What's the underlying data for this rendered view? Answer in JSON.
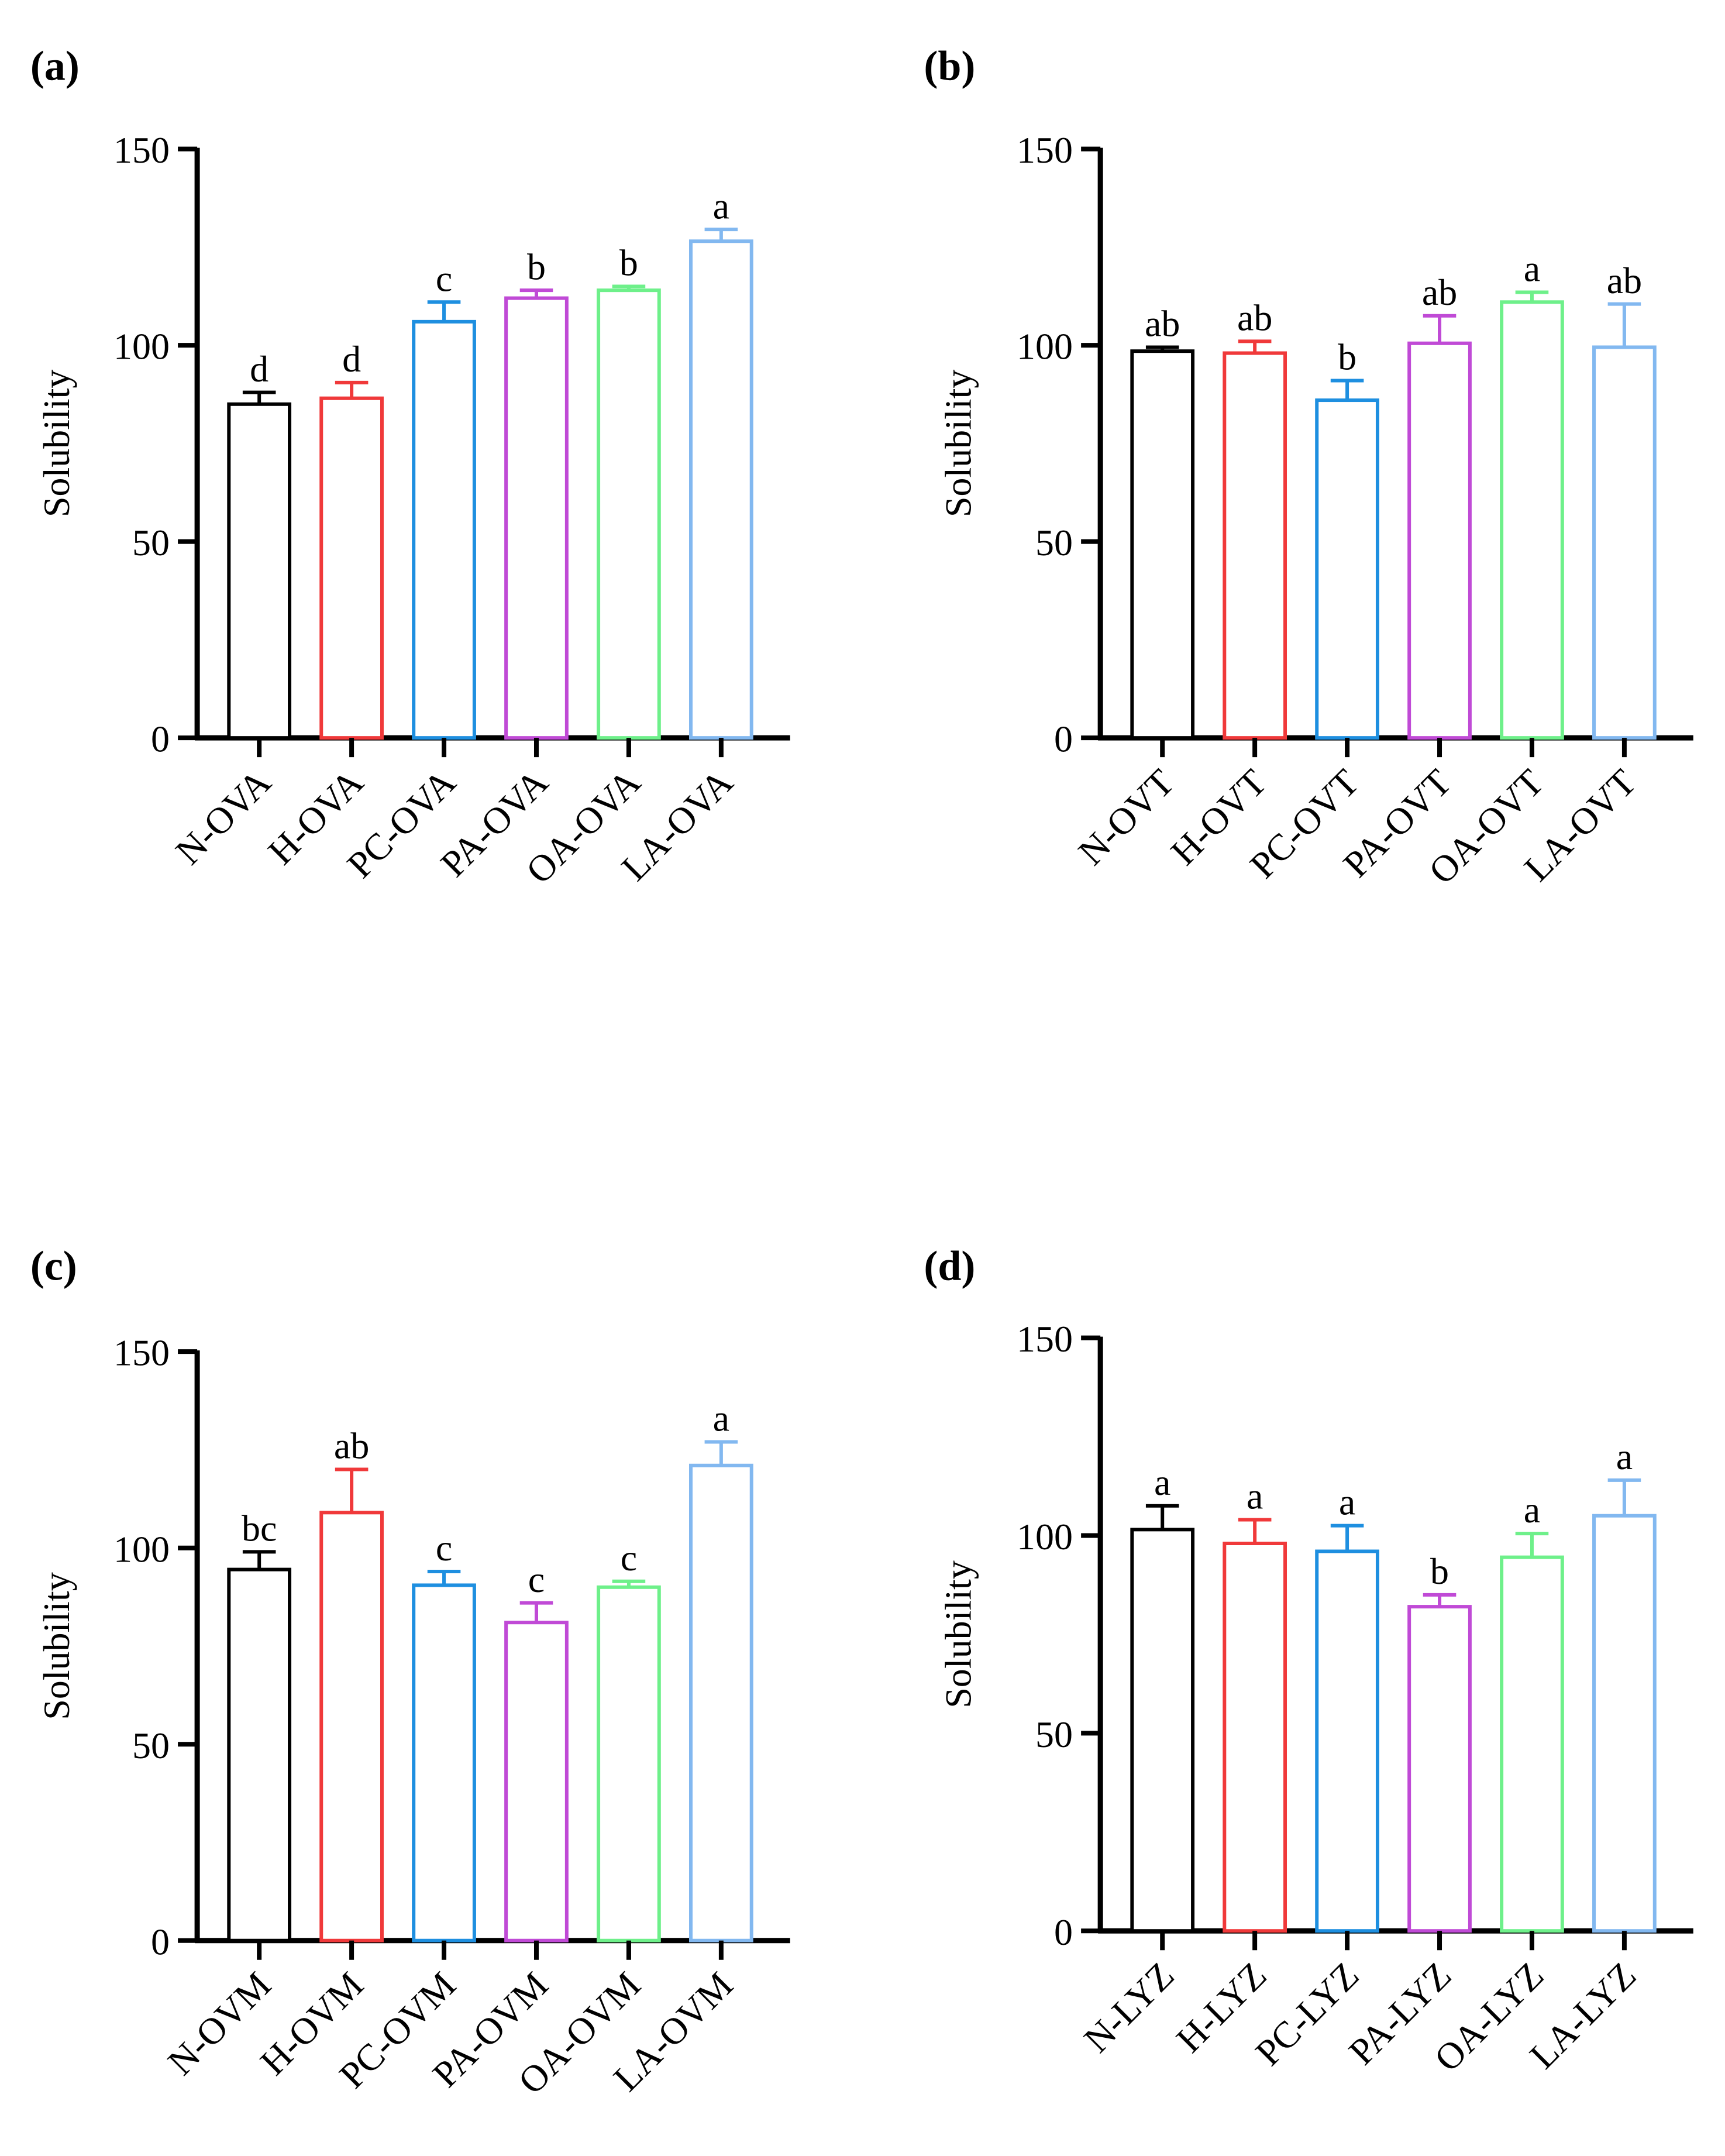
{
  "chart_data": [
    {
      "type": "bar",
      "panel_label": "(a)",
      "ylabel": "Solubility",
      "xlabel": "",
      "ylim": [
        0,
        150
      ],
      "yticks": [
        "0",
        "50",
        "100",
        "150"
      ],
      "categories": [
        "N-OVA",
        "H-OVA",
        "PC-OVA",
        "PA-OVA",
        "OA-OVA",
        "LA-OVA"
      ],
      "values": [
        85,
        86.5,
        106,
        112,
        114,
        126.5
      ],
      "errors": [
        3,
        4,
        5,
        2,
        1,
        3
      ],
      "significance": [
        "d",
        "d",
        "c",
        "b",
        "b",
        "a"
      ],
      "colors": [
        "#000000",
        "#f0393a",
        "#1e8fe0",
        "#c04ad6",
        "#6ef08a",
        "#82b8f0"
      ]
    },
    {
      "type": "bar",
      "panel_label": "(b)",
      "ylabel": "Solubility",
      "xlabel": "",
      "ylim": [
        0,
        150
      ],
      "yticks": [
        "0",
        "50",
        "100",
        "150"
      ],
      "categories": [
        "N-OVT",
        "H-OVT",
        "PC-OVT",
        "PA-OVT",
        "OA-OVT",
        "LA-OVT"
      ],
      "values": [
        98.5,
        98,
        86,
        100.5,
        111,
        99.5
      ],
      "errors": [
        1,
        3,
        5,
        7,
        2.5,
        11
      ],
      "significance": [
        "ab",
        "ab",
        "b",
        "ab",
        "a",
        "ab"
      ],
      "colors": [
        "#000000",
        "#f0393a",
        "#1e8fe0",
        "#c04ad6",
        "#6ef08a",
        "#82b8f0"
      ]
    },
    {
      "type": "bar",
      "panel_label": "(c)",
      "ylabel": "Solubility",
      "xlabel": "",
      "ylim": [
        0,
        150
      ],
      "yticks": [
        "0",
        "50",
        "100",
        "150"
      ],
      "categories": [
        "N-OVM",
        "H-OVM",
        "PC-OVM",
        "PA-OVM",
        "OA-OVM",
        "LA-OVM"
      ],
      "values": [
        94.5,
        109,
        90.5,
        81,
        90,
        121
      ],
      "errors": [
        4.5,
        11,
        3.5,
        5,
        1.5,
        6
      ],
      "significance": [
        "bc",
        "ab",
        "c",
        "c",
        "c",
        "a"
      ],
      "colors": [
        "#000000",
        "#f0393a",
        "#1e8fe0",
        "#c04ad6",
        "#6ef08a",
        "#82b8f0"
      ]
    },
    {
      "type": "bar",
      "panel_label": "(d)",
      "ylabel": "Solubility",
      "xlabel": "",
      "ylim": [
        0,
        150
      ],
      "yticks": [
        "0",
        "50",
        "100",
        "150"
      ],
      "categories": [
        "N-LYZ",
        "H-LYZ",
        "PC-LYZ",
        "PA-LYZ",
        "OA-LYZ",
        "LA-LYZ"
      ],
      "values": [
        101.5,
        98,
        96,
        82,
        94.5,
        105
      ],
      "errors": [
        6,
        6,
        6.5,
        3,
        6,
        9
      ],
      "significance": [
        "a",
        "a",
        "a",
        "b",
        "a",
        "a"
      ],
      "colors": [
        "#000000",
        "#f0393a",
        "#1e8fe0",
        "#c04ad6",
        "#6ef08a",
        "#82b8f0"
      ]
    }
  ]
}
